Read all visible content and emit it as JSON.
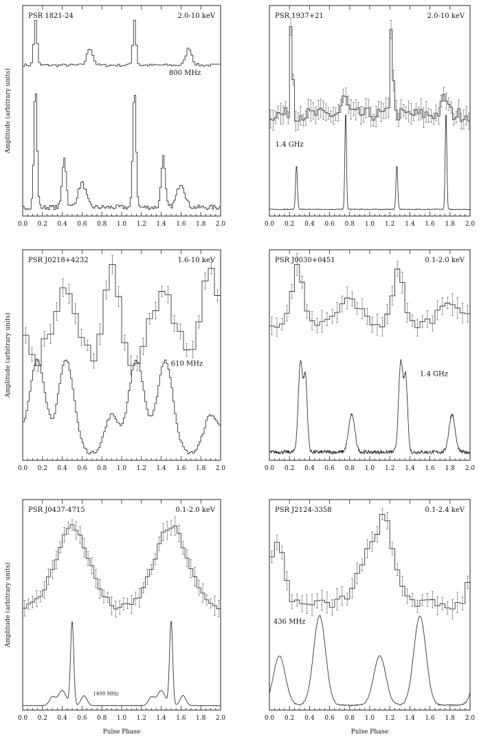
{
  "figure": {
    "ylabel": "Amplitude (arbitrary units)",
    "xlabel": "Pulse Phase"
  },
  "chart_data": [
    {
      "type": "line",
      "title": "PSR 1821-24",
      "xlim": [
        0,
        2
      ],
      "xticks": [
        "0.0",
        "0.2",
        "0.4",
        "0.6",
        "0.8",
        "1.0",
        "1.2",
        "1.4",
        "1.6",
        "1.8",
        "2.0"
      ],
      "ylabel": "Amplitude (arbitrary units)",
      "series": [
        {
          "name": "2.0-10 keV",
          "style": "hist",
          "errorbars": false,
          "ylevel": "upper",
          "baseline": 0.14,
          "noise": 0.03,
          "bins": 100,
          "peaks": [
            [
              0.13,
              0.016,
              1.0
            ],
            [
              0.68,
              0.03,
              0.38
            ],
            [
              1.13,
              0.016,
              1.0
            ],
            [
              1.68,
              0.03,
              0.38
            ]
          ]
        },
        {
          "name": "800 MHz",
          "style": "hist",
          "errorbars": false,
          "ylevel": "lower",
          "baseline": 0.05,
          "noise": 0.02,
          "bins": 140,
          "peaks": [
            [
              0.13,
              0.016,
              1.0
            ],
            [
              0.42,
              0.02,
              0.42
            ],
            [
              0.6,
              0.04,
              0.2
            ],
            [
              1.13,
              0.016,
              1.0
            ],
            [
              1.42,
              0.02,
              0.42
            ],
            [
              1.6,
              0.04,
              0.2
            ]
          ]
        }
      ]
    },
    {
      "type": "line",
      "title": "PSR 1937+21",
      "xlim": [
        0,
        2
      ],
      "xticks": [
        "0.0",
        "0.2",
        "0.4",
        "0.6",
        "0.8",
        "1.0",
        "1.2",
        "1.4",
        "1.6",
        "1.8",
        "2.0"
      ],
      "series": [
        {
          "name": "2.0-10 keV",
          "style": "hist",
          "errorbars": true,
          "ylevel": "upper",
          "baseline": 0.3,
          "noise": 0.06,
          "bins": 80,
          "peaks": [
            [
              0.22,
              0.012,
              0.95
            ],
            [
              0.75,
              0.03,
              0.15
            ],
            [
              1.22,
              0.012,
              0.95
            ],
            [
              1.75,
              0.03,
              0.15
            ]
          ]
        },
        {
          "name": "1.4 GHz",
          "style": "line",
          "errorbars": false,
          "ylevel": "lower",
          "baseline": 0.02,
          "noise": 0.004,
          "bins": 400,
          "peaks": [
            [
              0.27,
              0.009,
              0.45
            ],
            [
              0.76,
              0.008,
              1.0
            ],
            [
              1.27,
              0.009,
              0.45
            ],
            [
              1.76,
              0.008,
              1.0
            ]
          ]
        }
      ]
    },
    {
      "type": "line",
      "title": "PSR J0218+4232",
      "xlim": [
        0,
        2
      ],
      "xticks": [
        "0.0",
        "0.2",
        "0.4",
        "0.6",
        "0.8",
        "1.0",
        "1.2",
        "1.4",
        "1.6",
        "1.8",
        "2.0"
      ],
      "ylabel": "Amplitude (arbitrary units)",
      "series": [
        {
          "name": "1.6-10 keV",
          "style": "hist",
          "errorbars": true,
          "ylevel": "upper",
          "baseline": 0.2,
          "noise": 0.06,
          "bins": 32,
          "peaks": [
            [
              0.42,
              0.12,
              0.5
            ],
            [
              0.9,
              0.08,
              0.7
            ],
            [
              1.42,
              0.12,
              0.5
            ],
            [
              1.9,
              0.08,
              0.7
            ]
          ]
        },
        {
          "name": "610 MHz",
          "style": "hist",
          "errorbars": false,
          "ylevel": "lower",
          "baseline": 0.05,
          "noise": 0.015,
          "bins": 120,
          "peaks": [
            [
              0.15,
              0.08,
              0.85
            ],
            [
              0.44,
              0.08,
              0.85
            ],
            [
              0.9,
              0.07,
              0.35
            ],
            [
              1.15,
              0.08,
              0.85
            ],
            [
              1.44,
              0.08,
              0.85
            ],
            [
              1.9,
              0.07,
              0.35
            ]
          ]
        }
      ]
    },
    {
      "type": "line",
      "title": "PSR J0030+0451",
      "xlim": [
        0,
        2
      ],
      "xticks": [
        "0.0",
        "0.2",
        "0.4",
        "0.6",
        "0.8",
        "1.0",
        "1.2",
        "1.4",
        "1.6",
        "1.8",
        "2.0"
      ],
      "series": [
        {
          "name": "0.1-2.0 keV",
          "style": "hist",
          "errorbars": true,
          "ylevel": "upper",
          "baseline": 0.22,
          "noise": 0.07,
          "bins": 40,
          "peaks": [
            [
              0.28,
              0.05,
              0.8
            ],
            [
              0.8,
              0.1,
              0.35
            ],
            [
              1.28,
              0.05,
              0.8
            ],
            [
              1.8,
              0.1,
              0.35
            ]
          ]
        },
        {
          "name": "1.4 GHz",
          "style": "line",
          "errorbars": false,
          "ylevel": "lower",
          "baseline": 0.05,
          "noise": 0.02,
          "bins": 500,
          "peaks": [
            [
              0.31,
              0.022,
              0.95
            ],
            [
              0.36,
              0.018,
              0.75
            ],
            [
              0.82,
              0.03,
              0.4
            ],
            [
              1.31,
              0.022,
              0.95
            ],
            [
              1.36,
              0.018,
              0.75
            ],
            [
              1.82,
              0.03,
              0.4
            ]
          ]
        }
      ]
    },
    {
      "type": "line",
      "title": "PSR J0437-4715",
      "xlim": [
        0,
        2
      ],
      "xticks": [
        "0.0",
        "0.2",
        "0.4",
        "0.6",
        "0.8",
        "1.0",
        "1.2",
        "1.4",
        "1.6",
        "1.8",
        "2.0"
      ],
      "ylabel": "Amplitude (arbitrary units)",
      "xlabel": "Pulse Phase",
      "series": [
        {
          "name": "0.1-2.0 keV",
          "style": "hist",
          "errorbars": true,
          "ylevel": "upper",
          "baseline": 0.1,
          "noise": 0.04,
          "bins": 50,
          "peaks": [
            [
              0.5,
              0.17,
              0.85
            ],
            [
              1.5,
              0.17,
              0.85
            ]
          ]
        },
        {
          "name": "1408 MHz",
          "style": "line",
          "errorbars": false,
          "ylevel": "lower",
          "baseline": 0.02,
          "noise": 0.003,
          "bins": 400,
          "peaks": [
            [
              0.3,
              0.03,
              0.1
            ],
            [
              0.4,
              0.04,
              0.18
            ],
            [
              0.5,
              0.016,
              1.0
            ],
            [
              0.62,
              0.03,
              0.12
            ],
            [
              1.3,
              0.03,
              0.1
            ],
            [
              1.4,
              0.04,
              0.18
            ],
            [
              1.5,
              0.016,
              1.0
            ],
            [
              1.62,
              0.03,
              0.12
            ]
          ]
        }
      ]
    },
    {
      "type": "line",
      "title": "PSR J2124-3358",
      "xlim": [
        0,
        2
      ],
      "xticks": [
        "0.0",
        "0.2",
        "0.4",
        "0.6",
        "0.8",
        "1.0",
        "1.2",
        "1.4",
        "1.6",
        "1.8",
        "2.0"
      ],
      "xlabel": "Pulse Phase",
      "series": [
        {
          "name": "0.1-2.4 keV",
          "style": "hist",
          "errorbars": true,
          "ylevel": "upper",
          "baseline": 0.18,
          "noise": 0.06,
          "bins": 40,
          "peaks": [
            [
              0.08,
              0.07,
              0.65
            ],
            [
              1.08,
              0.16,
              0.65
            ],
            [
              1.15,
              0.06,
              0.3
            ]
          ]
        },
        {
          "name": "436 MHz",
          "style": "line",
          "errorbars": false,
          "ylevel": "lower",
          "baseline": 0.04,
          "noise": 0.008,
          "bins": 300,
          "peaks": [
            [
              0.1,
              0.06,
              0.55
            ],
            [
              0.5,
              0.06,
              1.0
            ],
            [
              1.1,
              0.06,
              0.55
            ],
            [
              1.5,
              0.06,
              1.0
            ]
          ]
        }
      ]
    }
  ]
}
